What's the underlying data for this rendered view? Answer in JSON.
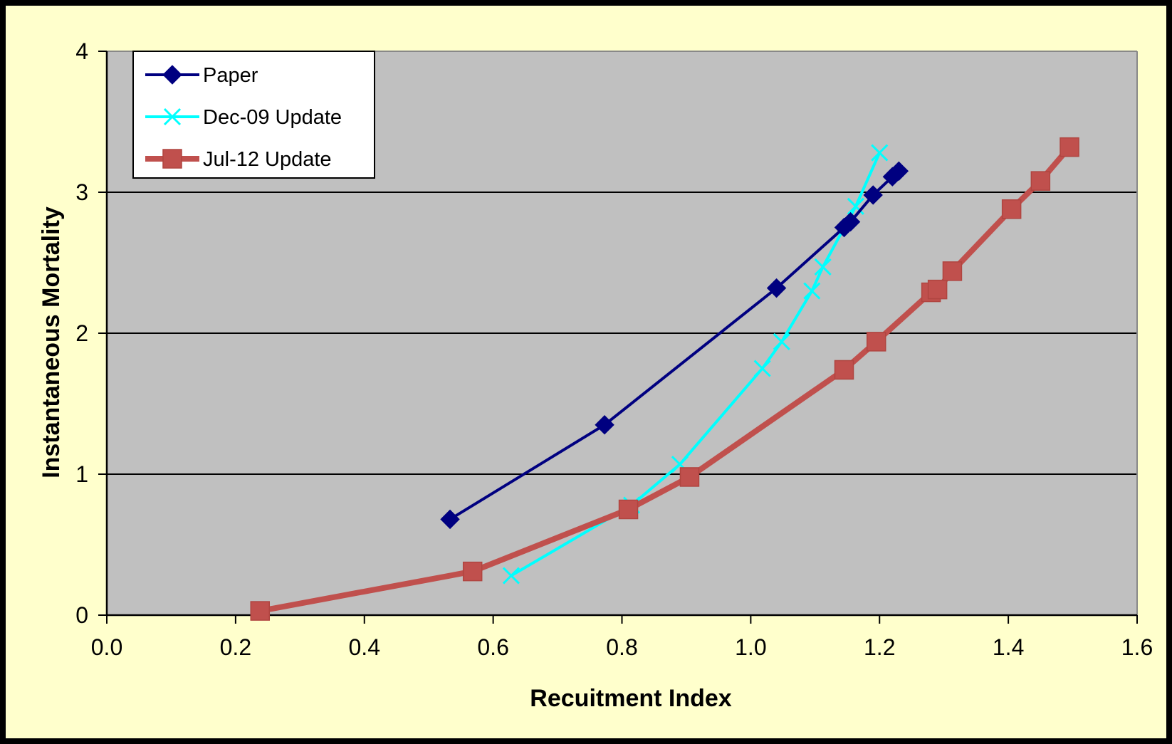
{
  "chart_data": {
    "type": "line",
    "title": "",
    "xlabel": "Recuitment Index",
    "ylabel": "Instantaneous Mortality",
    "xlim": [
      0.0,
      1.6
    ],
    "ylim": [
      0,
      4
    ],
    "x_ticks": [
      "0.0",
      "0.2",
      "0.4",
      "0.6",
      "0.8",
      "1.0",
      "1.2",
      "1.4",
      "1.6"
    ],
    "y_ticks": [
      "0",
      "1",
      "2",
      "3",
      "4"
    ],
    "grid": "horizontal",
    "legend_position": "top-left",
    "plot_background": "#C0C0C0",
    "frame_background": "#FFFFCC",
    "series": [
      {
        "name": "Paper",
        "color": "#000080",
        "marker": "diamond",
        "points": [
          [
            0.533,
            0.68
          ],
          [
            0.773,
            1.35
          ],
          [
            1.04,
            2.32
          ],
          [
            1.145,
            2.75
          ],
          [
            1.155,
            2.79
          ],
          [
            1.19,
            2.98
          ],
          [
            1.22,
            3.11
          ],
          [
            1.23,
            3.15
          ]
        ]
      },
      {
        "name": "Dec-09 Update",
        "color": "#00FFFF",
        "marker": "x",
        "points": [
          [
            0.628,
            0.28
          ],
          [
            0.815,
            0.78
          ],
          [
            0.89,
            1.07
          ],
          [
            1.018,
            1.75
          ],
          [
            1.048,
            1.94
          ],
          [
            1.095,
            2.3
          ],
          [
            1.112,
            2.47
          ],
          [
            1.163,
            2.9
          ],
          [
            1.2,
            3.28
          ]
        ]
      },
      {
        "name": "Jul-12 Update",
        "color": "#C0504D",
        "marker": "square",
        "points": [
          [
            0.238,
            0.03
          ],
          [
            0.568,
            0.31
          ],
          [
            0.81,
            0.75
          ],
          [
            0.905,
            0.98
          ],
          [
            1.145,
            1.74
          ],
          [
            1.195,
            1.94
          ],
          [
            1.28,
            2.29
          ],
          [
            1.29,
            2.31
          ],
          [
            1.313,
            2.44
          ],
          [
            1.405,
            2.88
          ],
          [
            1.45,
            3.08
          ],
          [
            1.495,
            3.32
          ]
        ]
      }
    ]
  }
}
